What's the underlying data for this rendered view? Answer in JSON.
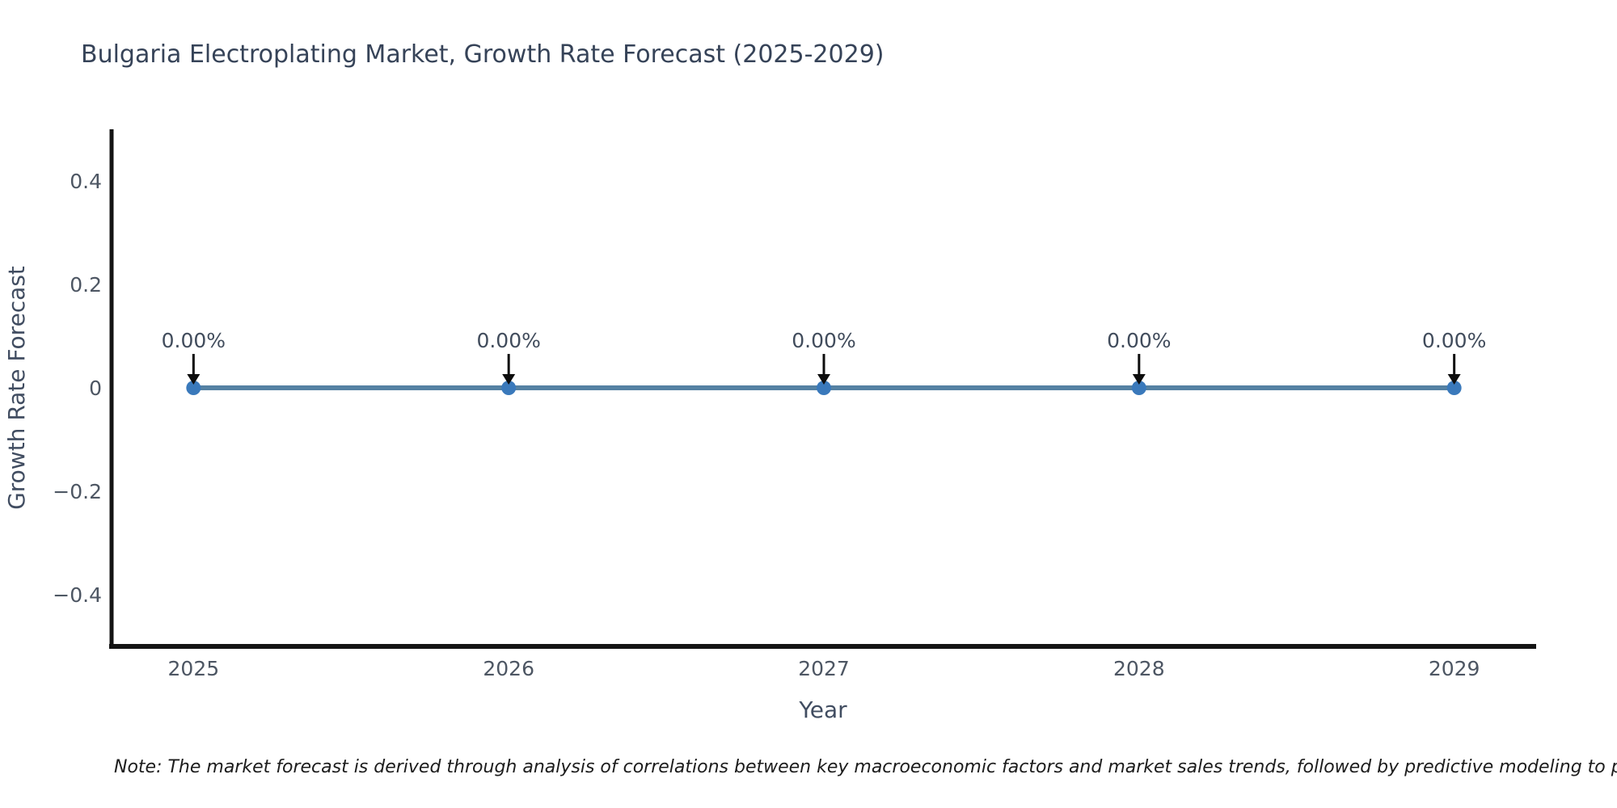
{
  "title": "Bulgaria Electroplating Market, Growth Rate Forecast (2025-2029)",
  "footnote": "Note: The market forecast is derived through analysis of correlations between key macroeconomic factors and market sales trends, followed by predictive modeling to project future sales",
  "chart_data": {
    "type": "line",
    "title": "Bulgaria Electroplating Market, Growth Rate Forecast (2025-2029)",
    "xlabel": "Year",
    "ylabel": "Growth Rate Forecast",
    "x": [
      2025,
      2026,
      2027,
      2028,
      2029
    ],
    "y": [
      0,
      0,
      0,
      0,
      0
    ],
    "point_labels": [
      "0.00%",
      "0.00%",
      "0.00%",
      "0.00%",
      "0.00%"
    ],
    "xticks": [
      {
        "v": 2025,
        "label": "2025"
      },
      {
        "v": 2026,
        "label": "2026"
      },
      {
        "v": 2027,
        "label": "2027"
      },
      {
        "v": 2028,
        "label": "2028"
      },
      {
        "v": 2029,
        "label": "2029"
      }
    ],
    "yticks": [
      {
        "v": 0.4,
        "label": "0.4"
      },
      {
        "v": 0.2,
        "label": "0.2"
      },
      {
        "v": 0,
        "label": "0"
      },
      {
        "v": -0.2,
        "label": "−0.2"
      },
      {
        "v": -0.4,
        "label": "−0.4"
      }
    ],
    "xlim": [
      2024.74,
      2029.26
    ],
    "ylim": [
      -0.5,
      0.497
    ],
    "grid": false,
    "legend": "none"
  },
  "colors": {
    "line": "#5581A3",
    "marker": "#3A79BB",
    "arrow": "#0d0d0d",
    "axis": "#141414",
    "tick_label": "#4D5663",
    "axis_label": "#414D61",
    "annotation_text": "#414C5C",
    "title_text": "#364358",
    "background": "#ffffff"
  }
}
